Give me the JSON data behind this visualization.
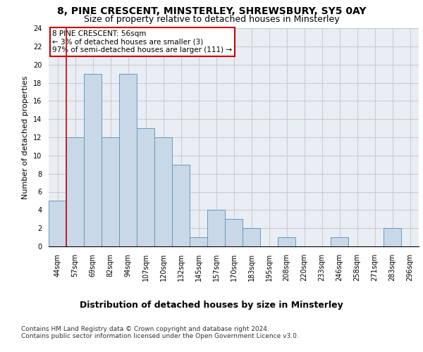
{
  "title1": "8, PINE CRESCENT, MINSTERLEY, SHREWSBURY, SY5 0AY",
  "title2": "Size of property relative to detached houses in Minsterley",
  "xlabel": "Distribution of detached houses by size in Minsterley",
  "ylabel": "Number of detached properties",
  "bar_labels": [
    "44sqm",
    "57sqm",
    "69sqm",
    "82sqm",
    "94sqm",
    "107sqm",
    "120sqm",
    "132sqm",
    "145sqm",
    "157sqm",
    "170sqm",
    "183sqm",
    "195sqm",
    "208sqm",
    "220sqm",
    "233sqm",
    "246sqm",
    "258sqm",
    "271sqm",
    "283sqm",
    "296sqm"
  ],
  "bar_values": [
    5,
    12,
    19,
    12,
    19,
    13,
    12,
    9,
    1,
    4,
    3,
    2,
    0,
    1,
    0,
    0,
    1,
    0,
    0,
    2,
    0
  ],
  "bar_color": "#c8d8e8",
  "bar_edge_color": "#6699bb",
  "annotation_box_text": "8 PINE CRESCENT: 56sqm\n← 3% of detached houses are smaller (3)\n97% of semi-detached houses are larger (111) →",
  "vline_x": 0.5,
  "vline_color": "#cc0000",
  "box_edge_color": "#cc0000",
  "ylim": [
    0,
    24
  ],
  "yticks": [
    0,
    2,
    4,
    6,
    8,
    10,
    12,
    14,
    16,
    18,
    20,
    22,
    24
  ],
  "footnote": "Contains HM Land Registry data © Crown copyright and database right 2024.\nContains public sector information licensed under the Open Government Licence v3.0.",
  "grid_color": "#cccccc",
  "bg_color": "#e8eef4",
  "title1_fontsize": 10,
  "title2_fontsize": 9,
  "xlabel_fontsize": 9,
  "ylabel_fontsize": 8,
  "tick_fontsize": 7,
  "annot_fontsize": 7.5,
  "footnote_fontsize": 6.5
}
